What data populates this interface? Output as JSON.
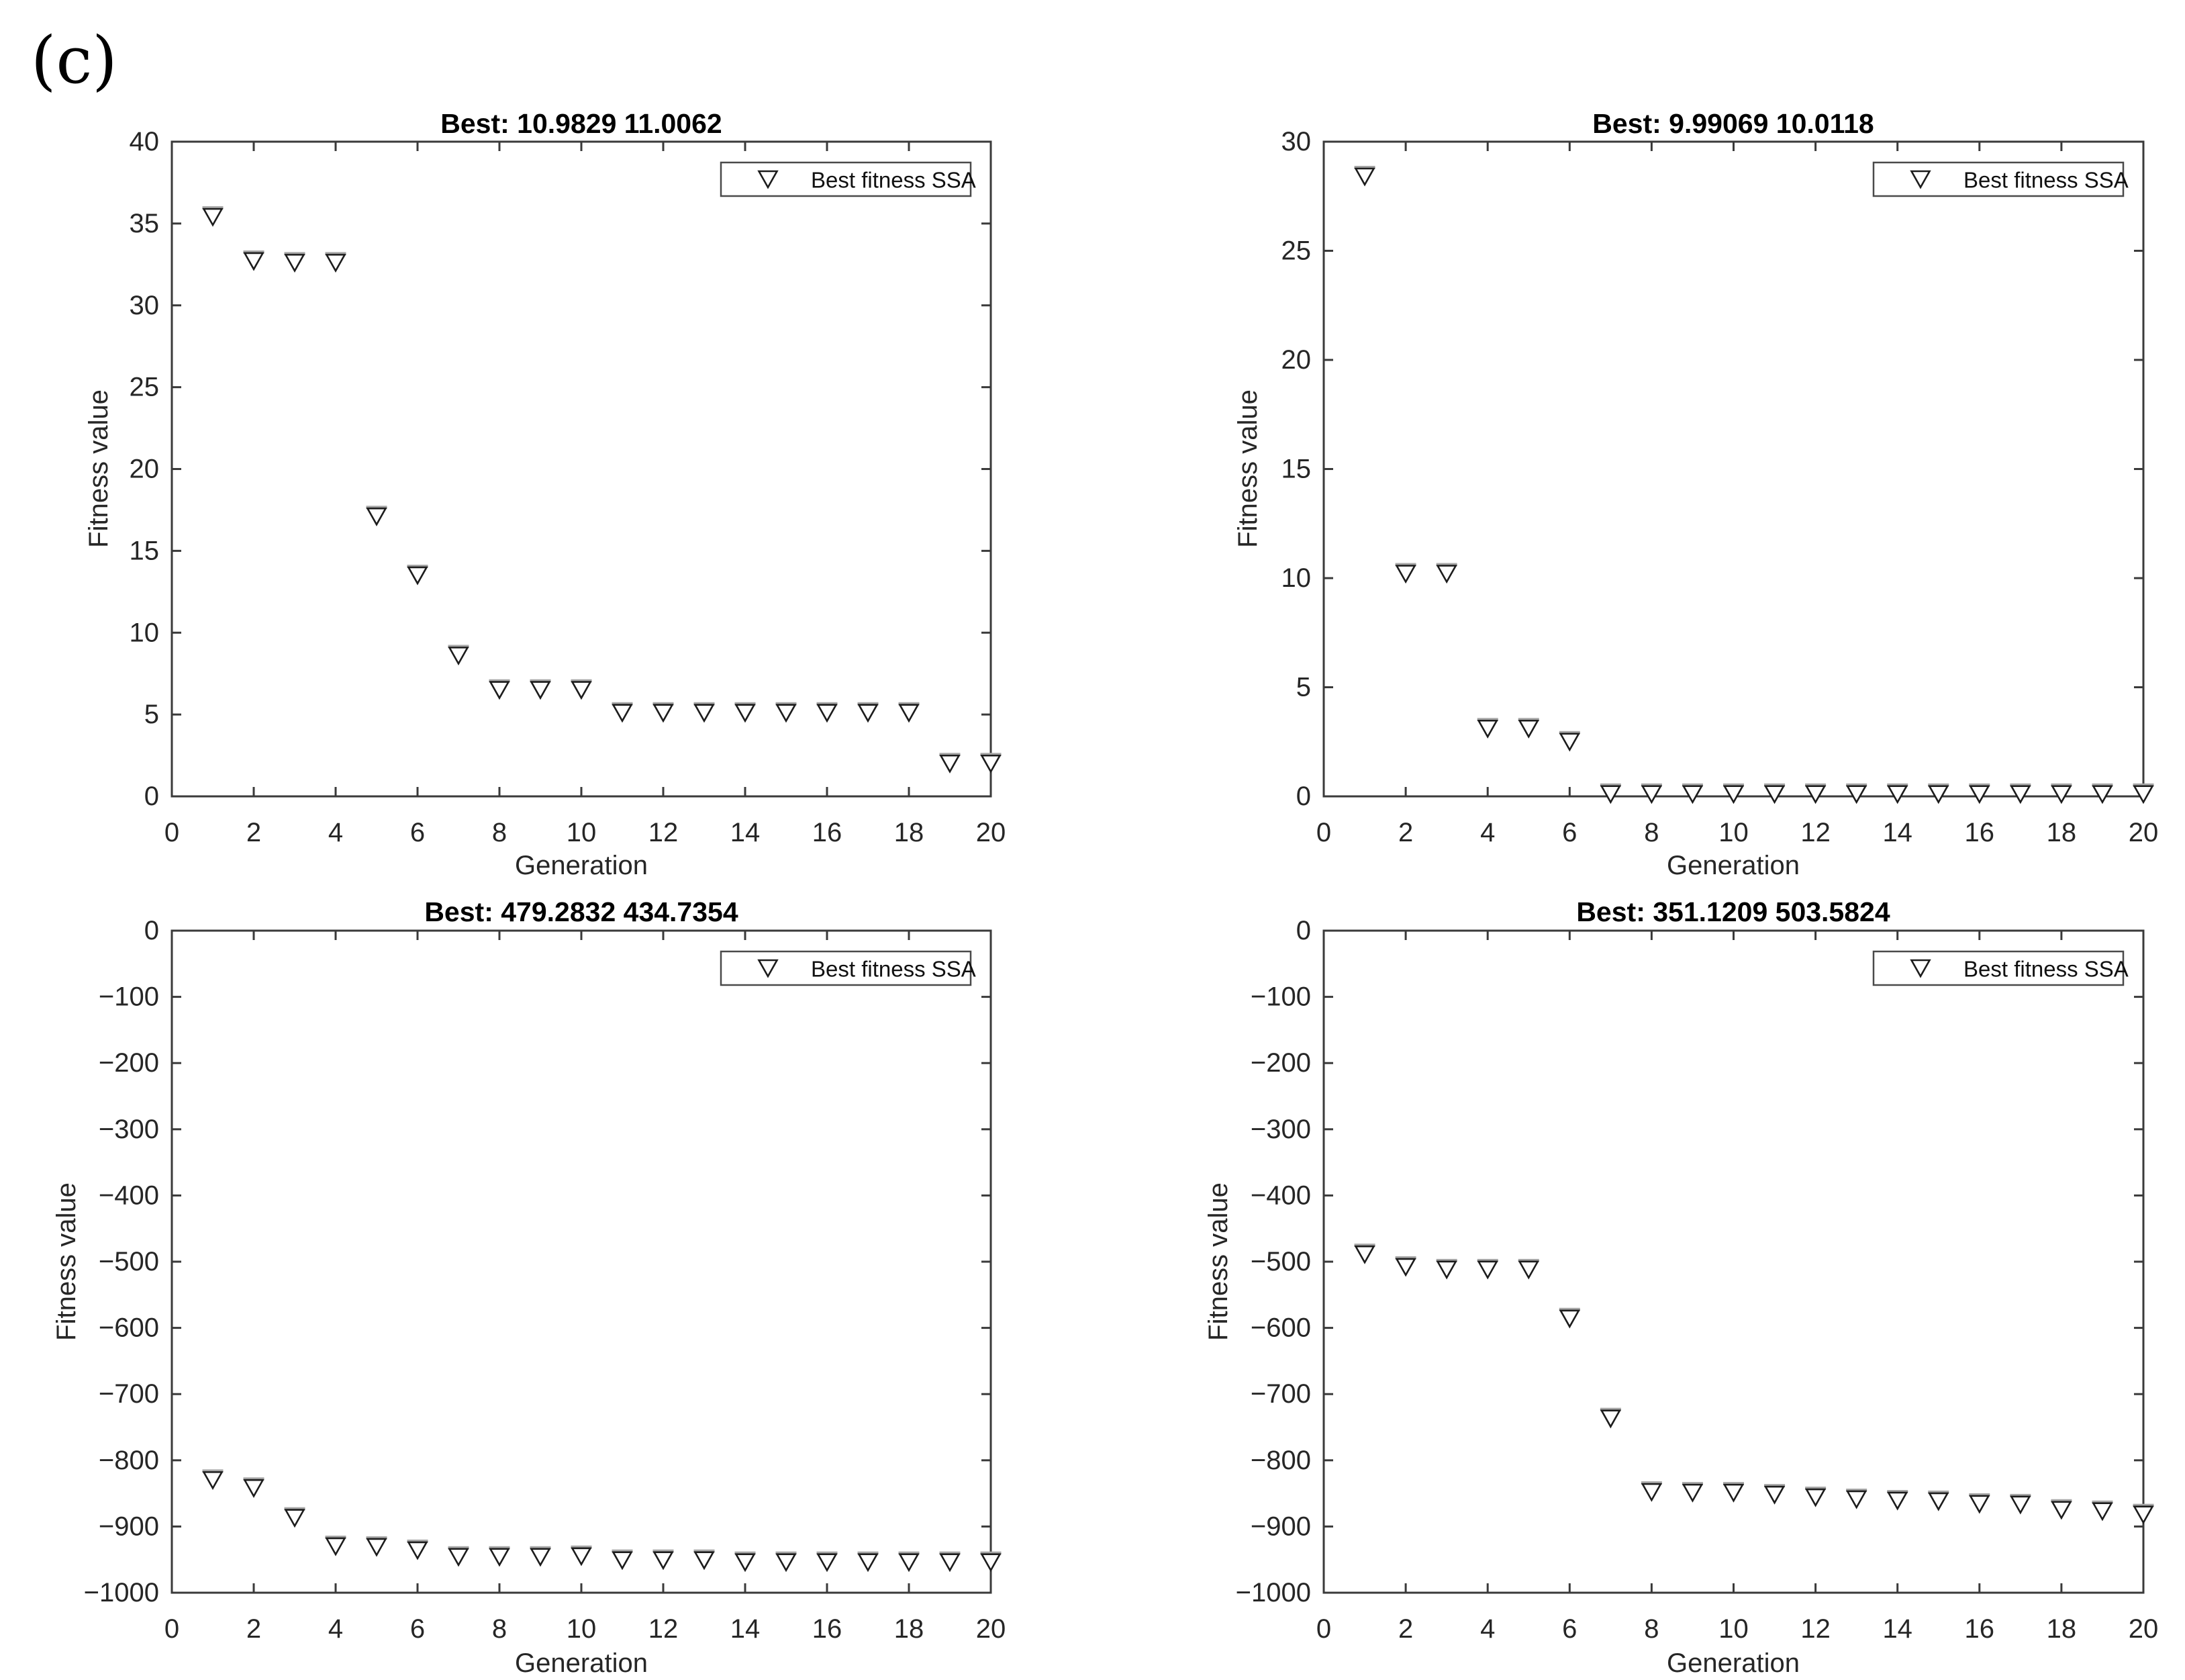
{
  "figure_label": "(c)",
  "colors": {
    "background": "#ffffff",
    "axis": "#3a3a3a",
    "tick_text": "#262626",
    "title_text": "#000000",
    "marker_edge": "#1c1c1c",
    "marker_cap": "#a6a6a6",
    "legend_border": "#4a4a4a"
  },
  "chart_data": [
    {
      "type": "scatter",
      "title": "Best: 10.9829 11.0062",
      "xlabel": "Generation",
      "ylabel": "Fitness value",
      "legend_label": "Best fitness SSA",
      "legend_position": "top-right",
      "marker": "triangle-down-open",
      "grid": false,
      "xlim": [
        0,
        20
      ],
      "ylim": [
        0,
        40
      ],
      "xticks": [
        0,
        2,
        4,
        6,
        8,
        10,
        12,
        14,
        16,
        18,
        20
      ],
      "yticks": [
        0,
        5,
        10,
        15,
        20,
        25,
        30,
        35,
        40
      ],
      "x": [
        1,
        2,
        3,
        4,
        5,
        6,
        7,
        8,
        9,
        10,
        11,
        12,
        13,
        14,
        15,
        16,
        17,
        18,
        19,
        20
      ],
      "y": [
        35.4,
        32.7,
        32.6,
        32.6,
        17.1,
        13.5,
        8.6,
        6.5,
        6.5,
        6.5,
        5.1,
        5.1,
        5.1,
        5.1,
        5.1,
        5.1,
        5.1,
        5.1,
        2.0,
        2.0
      ]
    },
    {
      "type": "scatter",
      "title": "Best: 9.99069 10.0118",
      "xlabel": "Generation",
      "ylabel": "Fitness value",
      "legend_label": "Best fitness SSA",
      "legend_position": "top-right",
      "marker": "triangle-down-open",
      "grid": false,
      "xlim": [
        0,
        20
      ],
      "ylim": [
        0,
        30
      ],
      "xticks": [
        0,
        2,
        4,
        6,
        8,
        10,
        12,
        14,
        16,
        18,
        20
      ],
      "yticks": [
        0,
        5,
        10,
        15,
        20,
        25,
        30
      ],
      "x": [
        1,
        2,
        3,
        4,
        5,
        6,
        7,
        8,
        9,
        10,
        11,
        12,
        13,
        14,
        15,
        16,
        17,
        18,
        19,
        20
      ],
      "y": [
        28.4,
        10.2,
        10.2,
        3.1,
        3.1,
        2.5,
        0.1,
        0.1,
        0.1,
        0.1,
        0.1,
        0.1,
        0.1,
        0.1,
        0.1,
        0.1,
        0.1,
        0.1,
        0.1,
        0.1
      ]
    },
    {
      "type": "scatter",
      "title": "Best: 479.2832 434.7354",
      "xlabel": "Generation",
      "ylabel": "Fitness value",
      "legend_label": "Best fitness SSA",
      "legend_position": "top-right",
      "marker": "triangle-down-open",
      "grid": false,
      "xlim": [
        0,
        20
      ],
      "ylim": [
        -1000,
        0
      ],
      "xticks": [
        0,
        2,
        4,
        6,
        8,
        10,
        12,
        14,
        16,
        18,
        20
      ],
      "yticks": [
        -1000,
        -900,
        -800,
        -700,
        -600,
        -500,
        -400,
        -300,
        -200,
        -100,
        0
      ],
      "x": [
        1,
        2,
        3,
        4,
        5,
        6,
        7,
        8,
        9,
        10,
        11,
        12,
        13,
        14,
        15,
        16,
        17,
        18,
        19,
        20
      ],
      "y": [
        -830,
        -842,
        -887,
        -930,
        -931,
        -936,
        -946,
        -946,
        -946,
        -945,
        -951,
        -951,
        -951,
        -954,
        -954,
        -954,
        -954,
        -954,
        -954,
        -954
      ]
    },
    {
      "type": "scatter",
      "title": "Best: 351.1209 503.5824",
      "xlabel": "Generation",
      "ylabel": "Fitness value",
      "legend_label": "Best fitness SSA",
      "legend_position": "top-right",
      "marker": "triangle-down-open",
      "grid": false,
      "xlim": [
        0,
        20
      ],
      "ylim": [
        -1000,
        0
      ],
      "xticks": [
        0,
        2,
        4,
        6,
        8,
        10,
        12,
        14,
        16,
        18,
        20
      ],
      "yticks": [
        -1000,
        -900,
        -800,
        -700,
        -600,
        -500,
        -400,
        -300,
        -200,
        -100,
        0
      ],
      "x": [
        1,
        2,
        3,
        4,
        5,
        6,
        7,
        8,
        9,
        10,
        11,
        12,
        13,
        14,
        15,
        16,
        17,
        18,
        19,
        20
      ],
      "y": [
        -489,
        -508,
        -512,
        -512,
        -512,
        -586,
        -737,
        -848,
        -849,
        -849,
        -852,
        -856,
        -859,
        -861,
        -862,
        -866,
        -867,
        -875,
        -877,
        -882
      ]
    }
  ]
}
